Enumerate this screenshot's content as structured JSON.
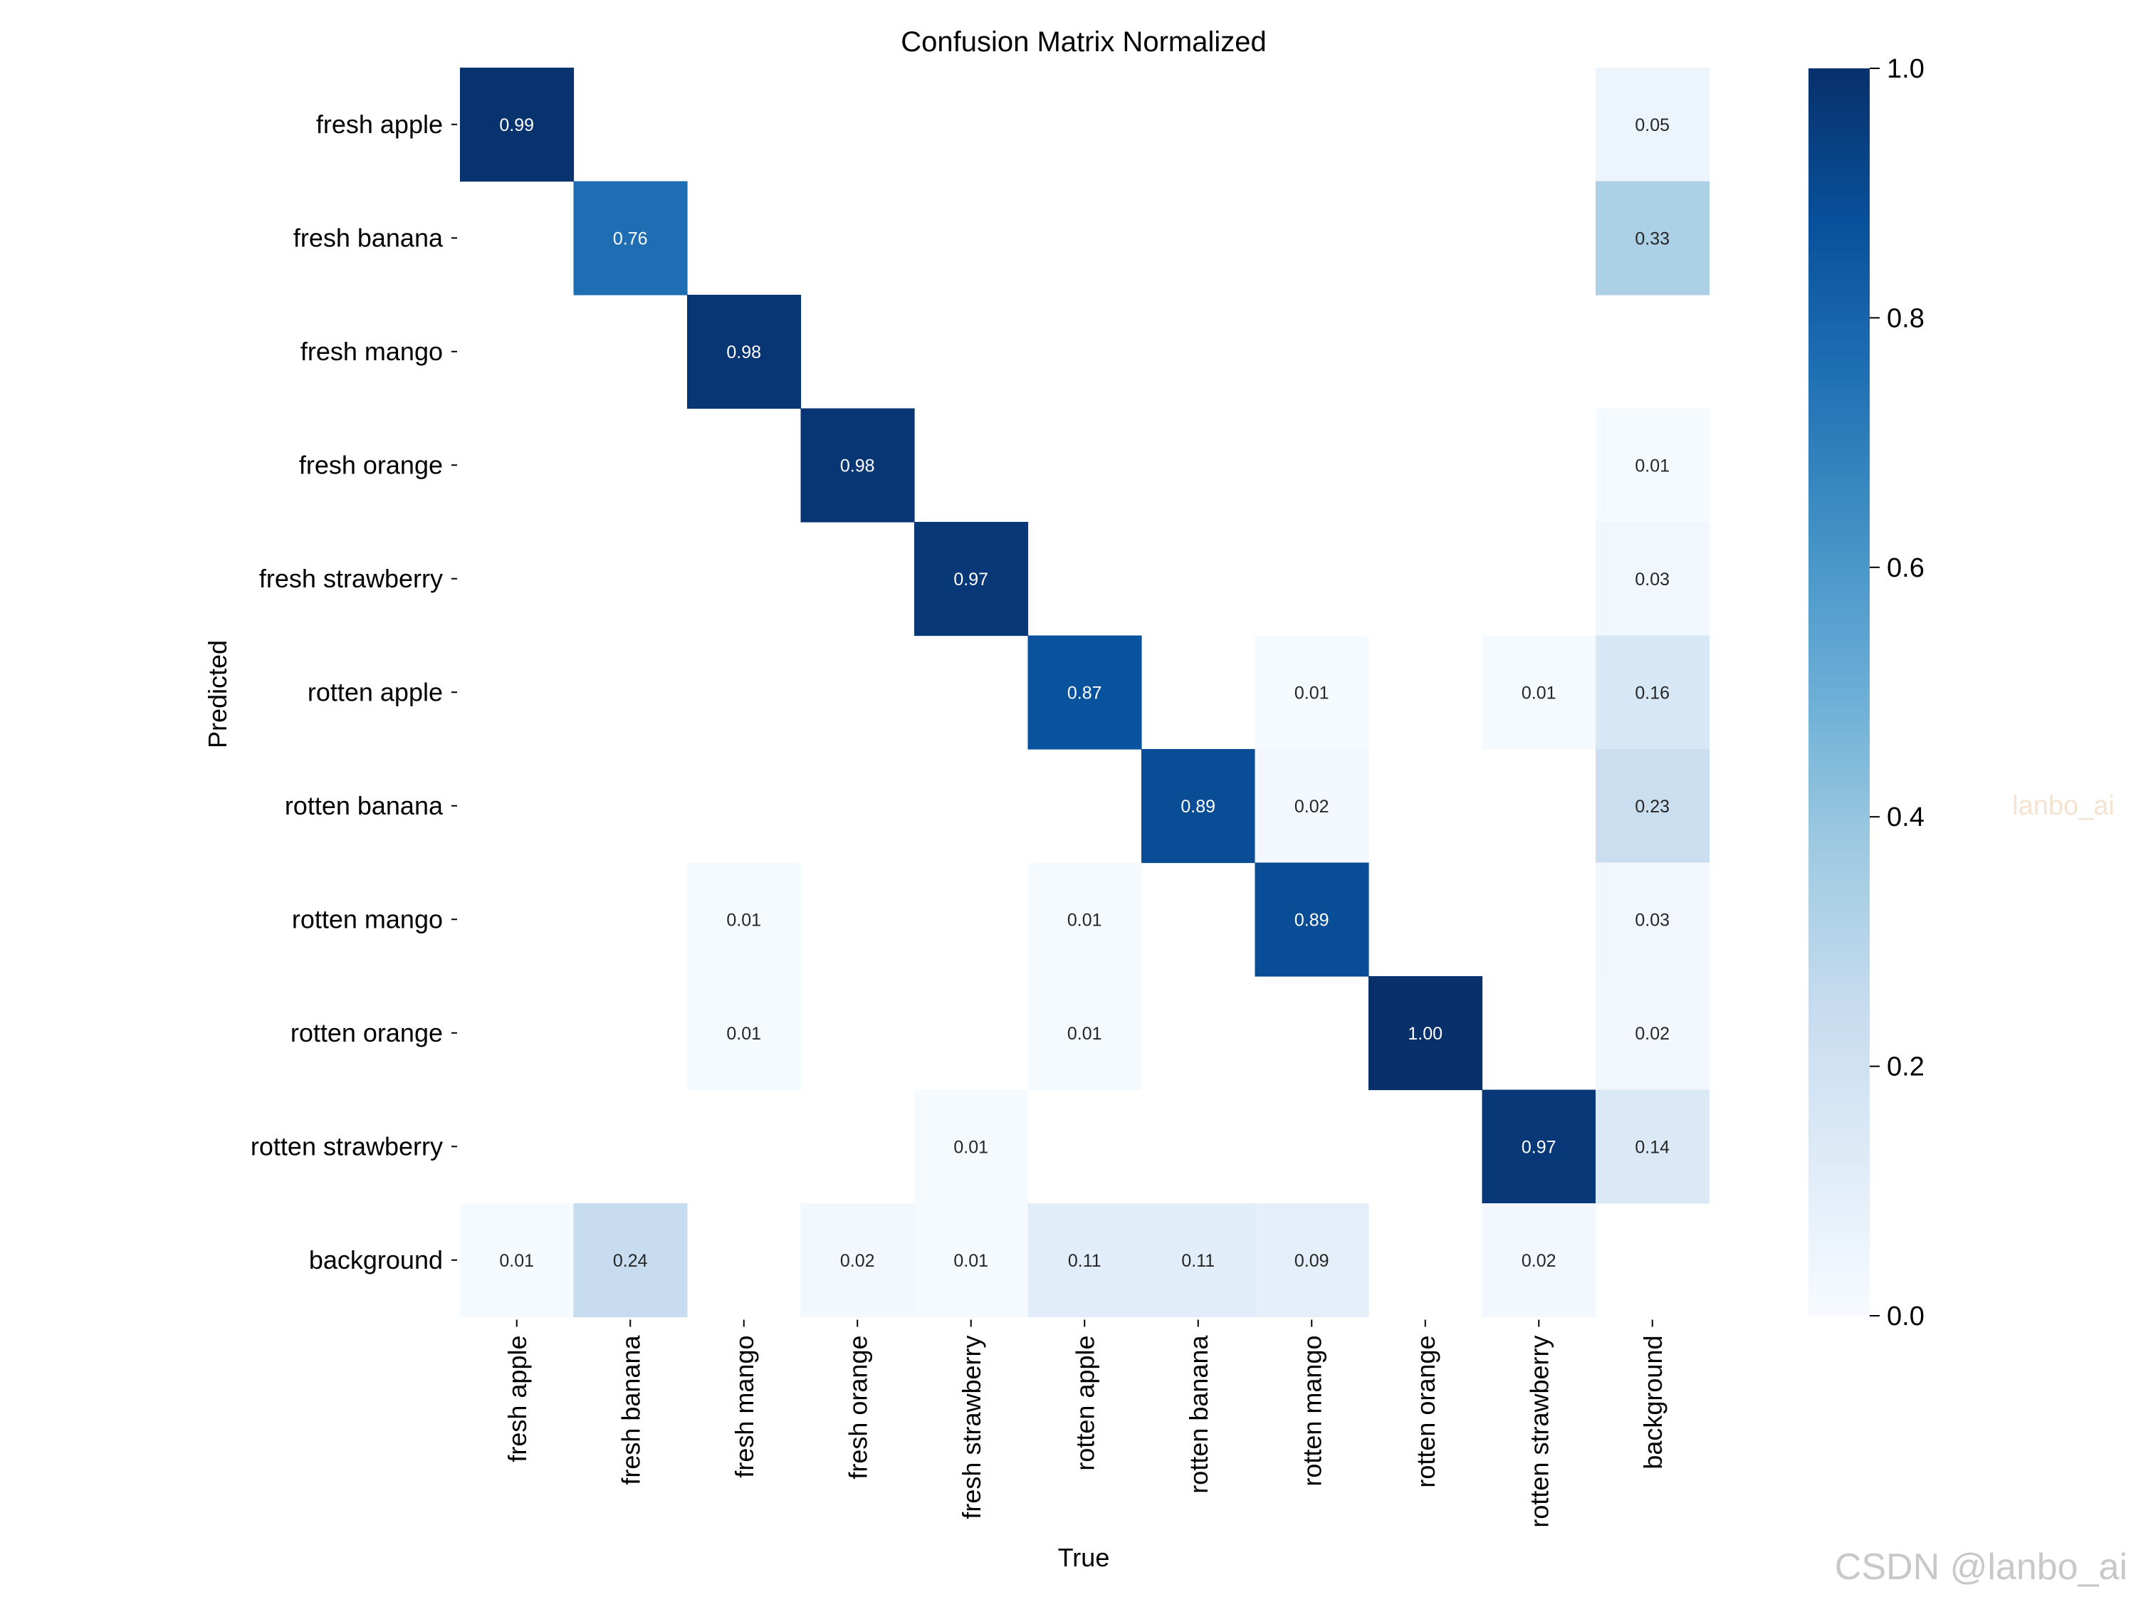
{
  "chart_data": {
    "type": "heatmap",
    "title": "Confusion Matrix Normalized",
    "xlabel": "True",
    "ylabel": "Predicted",
    "x_categories": [
      "fresh apple",
      "fresh banana",
      "fresh mango",
      "fresh orange",
      "fresh strawberry",
      "rotten apple",
      "rotten banana",
      "rotten mango",
      "rotten orange",
      "rotten strawberry",
      "background"
    ],
    "y_categories": [
      "fresh apple",
      "fresh banana",
      "fresh mango",
      "fresh orange",
      "fresh strawberry",
      "rotten apple",
      "rotten banana",
      "rotten mango",
      "rotten orange",
      "rotten strawberry",
      "background"
    ],
    "matrix": [
      [
        0.99,
        null,
        null,
        null,
        null,
        null,
        null,
        null,
        null,
        null,
        0.05
      ],
      [
        null,
        0.76,
        null,
        null,
        null,
        null,
        null,
        null,
        null,
        null,
        0.33
      ],
      [
        null,
        null,
        0.98,
        null,
        null,
        null,
        null,
        null,
        null,
        null,
        null
      ],
      [
        null,
        null,
        null,
        0.98,
        null,
        null,
        null,
        null,
        null,
        null,
        0.01
      ],
      [
        null,
        null,
        null,
        null,
        0.97,
        null,
        null,
        null,
        null,
        null,
        0.03
      ],
      [
        null,
        null,
        null,
        null,
        null,
        0.87,
        null,
        0.01,
        null,
        0.01,
        0.16
      ],
      [
        null,
        null,
        null,
        null,
        null,
        null,
        0.89,
        0.02,
        null,
        null,
        0.23
      ],
      [
        null,
        null,
        0.01,
        null,
        null,
        0.01,
        null,
        0.89,
        null,
        null,
        0.03
      ],
      [
        null,
        null,
        0.01,
        null,
        null,
        0.01,
        null,
        null,
        1.0,
        null,
        0.02
      ],
      [
        null,
        null,
        null,
        null,
        0.01,
        null,
        null,
        null,
        null,
        0.97,
        0.14
      ],
      [
        0.01,
        0.24,
        null,
        0.02,
        0.01,
        0.11,
        0.11,
        0.09,
        null,
        0.02,
        null
      ]
    ],
    "value_range": [
      0.0,
      1.0
    ],
    "colormap": "Blues",
    "colorbar_ticks": [
      "0.0",
      "0.2",
      "0.4",
      "0.6",
      "0.8",
      "1.0"
    ]
  },
  "watermarks": {
    "side": "lanbo_ai",
    "corner": "CSDN @lanbo_ai"
  }
}
